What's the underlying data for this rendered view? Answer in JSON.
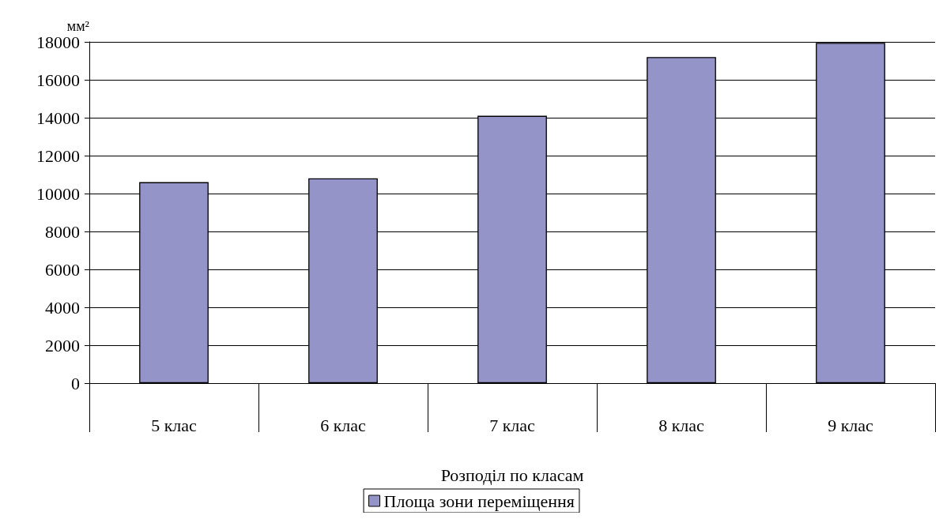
{
  "chart_data": {
    "type": "bar",
    "ylabel": "мм²",
    "xlabel": "Розподіл по класам",
    "categories": [
      "5 клас",
      "6 клас",
      "7 клас",
      "8 клас",
      "9 клас"
    ],
    "series": [
      {
        "name": "Площа зони переміщення",
        "color": "#9494c8",
        "values": [
          10600,
          10800,
          14100,
          17200,
          17950
        ]
      }
    ],
    "ylim": [
      0,
      18000
    ],
    "yticks": [
      0,
      2000,
      4000,
      6000,
      8000,
      10000,
      12000,
      14000,
      16000,
      18000
    ],
    "grid": "y",
    "legend": "bottom"
  }
}
